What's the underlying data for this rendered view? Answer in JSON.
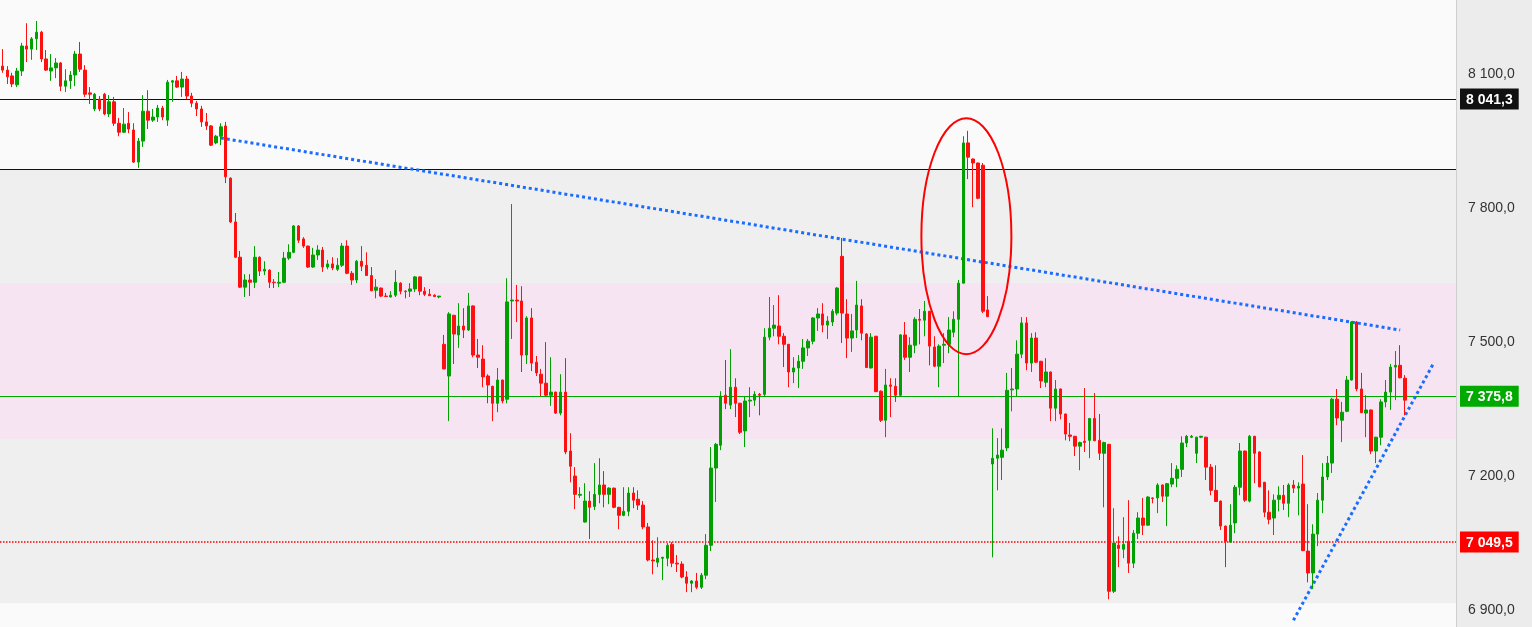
{
  "chart_data": {
    "type": "candlestick",
    "categories": [
      null,
      null,
      null,
      null,
      null,
      null,
      null,
      null,
      null,
      null,
      null,
      null,
      null,
      null,
      null,
      null,
      null,
      null,
      null,
      null,
      null,
      null,
      null,
      null,
      null,
      null,
      null,
      null,
      null,
      null,
      null,
      null,
      null,
      null,
      null,
      null,
      null,
      null,
      null,
      null,
      null,
      null,
      null,
      null,
      null,
      null,
      null,
      null,
      null,
      null,
      null,
      null,
      null,
      null,
      null,
      null,
      null,
      null,
      null,
      null,
      null,
      null,
      null,
      null,
      null,
      null,
      null,
      null,
      null,
      null,
      null,
      null,
      null,
      null,
      null,
      null,
      null,
      null,
      null,
      null,
      null,
      null,
      null,
      null,
      null,
      null,
      null,
      null,
      null,
      null,
      null,
      null,
      null,
      null,
      null,
      null,
      null,
      null,
      null,
      null,
      null,
      null,
      null,
      null,
      null,
      null,
      null,
      null,
      null,
      null,
      null,
      null,
      null,
      null,
      null,
      null,
      null,
      null,
      null,
      null,
      null,
      null,
      null,
      null,
      null,
      null,
      null,
      null,
      null,
      null,
      null,
      null,
      null,
      null,
      null,
      null,
      null,
      null,
      null,
      null,
      null,
      null,
      null,
      null,
      null,
      null,
      null,
      null,
      null,
      null,
      null,
      null,
      null,
      null,
      null,
      null,
      null,
      null,
      null,
      null,
      null,
      null,
      null,
      null,
      null,
      null,
      null,
      null,
      null,
      null,
      null,
      null,
      null,
      null,
      null,
      null,
      null,
      null,
      null,
      null,
      null,
      null,
      null,
      null,
      null,
      null,
      null,
      null,
      null,
      null,
      null,
      null,
      null,
      null,
      null,
      null,
      null,
      null,
      null,
      null,
      null,
      null,
      null,
      null,
      null,
      null,
      null,
      null,
      null,
      null,
      null,
      null,
      null,
      null,
      null,
      null,
      null,
      null,
      null,
      null,
      null,
      null,
      null,
      null,
      null,
      null,
      null,
      null,
      null,
      null,
      null,
      null,
      null,
      null,
      null,
      null,
      null,
      null,
      null,
      null,
      null,
      null,
      null,
      null,
      null,
      null,
      null,
      null,
      null,
      null,
      null,
      null,
      null,
      null,
      null,
      null,
      null,
      null,
      null,
      null,
      null,
      null,
      null,
      null,
      null,
      null,
      null,
      null,
      null,
      null,
      null,
      null,
      null,
      null,
      null,
      null,
      null,
      null,
      null,
      null,
      null,
      null,
      null,
      null,
      null,
      null,
      null,
      null,
      null,
      null,
      null,
      null,
      null,
      null,
      null,
      null,
      null,
      null,
      null,
      null
    ],
    "ohlc": [
      [
        8115,
        8153,
        8100,
        8106
      ],
      [
        8106,
        8115,
        8075,
        8091
      ],
      [
        8093,
        8100,
        8068,
        8075
      ],
      [
        8073,
        8111,
        8068,
        8104
      ],
      [
        8104,
        8167,
        8093,
        8160
      ],
      [
        8160,
        8211,
        8124,
        8153
      ],
      [
        8153,
        8180,
        8129,
        8176
      ],
      [
        8176,
        8216,
        8151,
        8191
      ],
      [
        8191,
        8194,
        8124,
        8131
      ],
      [
        8131,
        8151,
        8104,
        8106
      ],
      [
        8104,
        8142,
        8082,
        8111
      ],
      [
        8111,
        8133,
        8088,
        8122
      ],
      [
        8122,
        8124,
        8059,
        8070
      ],
      [
        8070,
        8108,
        8057,
        8082
      ],
      [
        8082,
        8104,
        8064,
        8095
      ],
      [
        8095,
        8149,
        8070,
        8142
      ],
      [
        8142,
        8169,
        8102,
        8108
      ],
      [
        8106,
        8117,
        8046,
        8052
      ],
      [
        8055,
        8068,
        8030,
        8052
      ],
      [
        8019,
        8055,
        8014,
        8052
      ],
      [
        8041,
        8048,
        8014,
        8019
      ],
      [
        8052,
        8055,
        8005,
        8008
      ],
      [
        8008,
        8050,
        8001,
        8035
      ],
      [
        8035,
        8046,
        7981,
        7987
      ],
      [
        7987,
        7999,
        7958,
        7967
      ],
      [
        7967,
        8021,
        7965,
        7985
      ],
      [
        7987,
        8012,
        7965,
        7974
      ],
      [
        7972,
        7987,
        7898,
        7900
      ],
      [
        7900,
        7954,
        7887,
        7947
      ],
      [
        7947,
        8050,
        7934,
        8014
      ],
      [
        8014,
        8061,
        7974,
        7994
      ],
      [
        7994,
        8019,
        7990,
        8001
      ],
      [
        8001,
        8028,
        7990,
        8021
      ],
      [
        8021,
        8026,
        7994,
        8001
      ],
      [
        7994,
        8084,
        7981,
        8079
      ],
      [
        8079,
        8084,
        8035,
        8082
      ],
      [
        8082,
        8093,
        8066,
        8068
      ],
      [
        8068,
        8102,
        8046,
        8086
      ],
      [
        8086,
        8093,
        8041,
        8048
      ],
      [
        8048,
        8055,
        8023,
        8032
      ],
      [
        8032,
        8037,
        8003,
        8019
      ],
      [
        8019,
        8026,
        7979,
        7990
      ],
      [
        7990,
        8010,
        7972,
        7981
      ],
      [
        7981,
        7983,
        7936,
        7938
      ],
      [
        7943,
        7961,
        7940,
        7958
      ],
      [
        7958,
        7987,
        7938,
        7979
      ],
      [
        7981,
        7990,
        7853,
        7867
      ],
      [
        7864,
        7866,
        7764,
        7766
      ],
      [
        7766,
        7786,
        7685,
        7687
      ],
      [
        7687,
        7701,
        7618,
        7620
      ],
      [
        7620,
        7649,
        7598,
        7636
      ],
      [
        7636,
        7649,
        7600,
        7631
      ],
      [
        7631,
        7712,
        7618,
        7687
      ],
      [
        7687,
        7689,
        7645,
        7656
      ],
      [
        7656,
        7678,
        7647,
        7660
      ],
      [
        7658,
        7660,
        7618,
        7631
      ],
      [
        7631,
        7638,
        7618,
        7630
      ],
      [
        7629,
        7654,
        7620,
        7631
      ],
      [
        7631,
        7699,
        7629,
        7685
      ],
      [
        7685,
        7716,
        7681,
        7698
      ],
      [
        7698,
        7759,
        7696,
        7757
      ],
      [
        7757,
        7759,
        7719,
        7725
      ],
      [
        7728,
        7732,
        7708,
        7712
      ],
      [
        7712,
        7713,
        7663,
        7665
      ],
      [
        7665,
        7708,
        7663,
        7692
      ],
      [
        7692,
        7714,
        7681,
        7703
      ],
      [
        7703,
        7710,
        7654,
        7665
      ],
      [
        7665,
        7681,
        7660,
        7672
      ],
      [
        7672,
        7687,
        7658,
        7663
      ],
      [
        7660,
        7685,
        7656,
        7669
      ],
      [
        7669,
        7719,
        7665,
        7712
      ],
      [
        7712,
        7725,
        7649,
        7651
      ],
      [
        7651,
        7656,
        7625,
        7636
      ],
      [
        7636,
        7681,
        7629,
        7678
      ],
      [
        7678,
        7712,
        7656,
        7667
      ],
      [
        7669,
        7698,
        7645,
        7646
      ],
      [
        7646,
        7665,
        7611,
        7612
      ],
      [
        7613,
        7638,
        7595,
        7620
      ],
      [
        7618,
        7619,
        7598,
        7600
      ],
      [
        7600,
        7607,
        7598,
        7599
      ],
      [
        7598,
        7611,
        7597,
        7602
      ],
      [
        7602,
        7658,
        7598,
        7631
      ],
      [
        7629,
        7631,
        7604,
        7611
      ],
      [
        7611,
        7613,
        7595,
        7610
      ],
      [
        7611,
        7629,
        7598,
        7616
      ],
      [
        7616,
        7645,
        7609,
        7643
      ],
      [
        7643,
        7644,
        7602,
        7611
      ],
      [
        7611,
        7620,
        7600,
        7604
      ],
      [
        7604,
        7616,
        7600,
        7601
      ],
      [
        7602,
        7604,
        7598,
        7599
      ],
      [
        7598,
        7600,
        7595,
        7600
      ],
      [
        7492,
        7513,
        7436,
        7437
      ],
      [
        7421,
        7564,
        7320,
        7560
      ],
      [
        7557,
        7558,
        7448,
        7515
      ],
      [
        7513,
        7584,
        7484,
        7533
      ],
      [
        7533,
        7573,
        7506,
        7524
      ],
      [
        7524,
        7607,
        7522,
        7578
      ],
      [
        7578,
        7579,
        7463,
        7468
      ],
      [
        7468,
        7504,
        7439,
        7463
      ],
      [
        7459,
        7490,
        7396,
        7419
      ],
      [
        7421,
        7425,
        7360,
        7401
      ],
      [
        7398,
        7399,
        7320,
        7360
      ],
      [
        7360,
        7439,
        7340,
        7412
      ],
      [
        7412,
        7413,
        7360,
        7365
      ],
      [
        7369,
        7640,
        7360,
        7587
      ],
      [
        7589,
        7806,
        7504,
        7591
      ],
      [
        7591,
        7625,
        7542,
        7589
      ],
      [
        7589,
        7622,
        7430,
        7468
      ],
      [
        7468,
        7555,
        7448,
        7551
      ],
      [
        7551,
        7573,
        7432,
        7450
      ],
      [
        7452,
        7466,
        7421,
        7428
      ],
      [
        7425,
        7437,
        7376,
        7405
      ],
      [
        7405,
        7497,
        7376,
        7378
      ],
      [
        7378,
        7463,
        7354,
        7385
      ],
      [
        7385,
        7386,
        7336,
        7338
      ],
      [
        7338,
        7425,
        7333,
        7385
      ],
      [
        7385,
        7461,
        7246,
        7251
      ],
      [
        7253,
        7293,
        7183,
        7219
      ],
      [
        7197,
        7217,
        7123,
        7156
      ],
      [
        7154,
        7172,
        7148,
        7156
      ],
      [
        7094,
        7181,
        7093,
        7141
      ],
      [
        7141,
        7163,
        7056,
        7127
      ],
      [
        7129,
        7226,
        7121,
        7156
      ],
      [
        7156,
        7237,
        7136,
        7177
      ],
      [
        7177,
        7208,
        7127,
        7156
      ],
      [
        7156,
        7172,
        7134,
        7170
      ],
      [
        7170,
        7171,
        7125,
        7127
      ],
      [
        7127,
        7128,
        7078,
        7109
      ],
      [
        7109,
        7172,
        7107,
        7118
      ],
      [
        7118,
        7172,
        7107,
        7159
      ],
      [
        7159,
        7172,
        7125,
        7143
      ],
      [
        7145,
        7165,
        7121,
        7132
      ],
      [
        7132,
        7141,
        7078,
        7083
      ],
      [
        7083,
        7092,
        7006,
        7009
      ],
      [
        7009,
        7053,
        6977,
        7007
      ],
      [
        7004,
        7060,
        6993,
        7013
      ],
      [
        7013,
        7016,
        6964,
        7015
      ],
      [
        7013,
        7047,
        6995,
        7042
      ],
      [
        7044,
        7049,
        6993,
        7002
      ],
      [
        7002,
        7020,
        6982,
        7000
      ],
      [
        7000,
        7006,
        6968,
        6971
      ],
      [
        6971,
        6984,
        6937,
        6957
      ],
      [
        6957,
        6964,
        6937,
        6962
      ],
      [
        6962,
        6980,
        6944,
        6948
      ],
      [
        6948,
        6980,
        6944,
        6975
      ],
      [
        6975,
        7067,
        6966,
        7042
      ],
      [
        7042,
        7262,
        7029,
        7215
      ],
      [
        7215,
        7271,
        7139,
        7268
      ],
      [
        7266,
        7387,
        7255,
        7376
      ],
      [
        7378,
        7457,
        7347,
        7360
      ],
      [
        7356,
        7481,
        7347,
        7396
      ],
      [
        7396,
        7416,
        7329,
        7360
      ],
      [
        7360,
        7361,
        7291,
        7295
      ],
      [
        7298,
        7374,
        7262,
        7365
      ],
      [
        7365,
        7396,
        7329,
        7367
      ],
      [
        7367,
        7387,
        7354,
        7380
      ],
      [
        7380,
        7383,
        7333,
        7378
      ],
      [
        7380,
        7528,
        7374,
        7508
      ],
      [
        7508,
        7598,
        7501,
        7528
      ],
      [
        7528,
        7580,
        7510,
        7535
      ],
      [
        7533,
        7602,
        7492,
        7510
      ],
      [
        7510,
        7517,
        7441,
        7492
      ],
      [
        7492,
        7493,
        7396,
        7430
      ],
      [
        7430,
        7463,
        7405,
        7439
      ],
      [
        7439,
        7468,
        7394,
        7454
      ],
      [
        7454,
        7504,
        7437,
        7484
      ],
      [
        7484,
        7504,
        7466,
        7499
      ],
      [
        7499,
        7553,
        7492,
        7551
      ],
      [
        7551,
        7573,
        7522,
        7560
      ],
      [
        7560,
        7584,
        7519,
        7535
      ],
      [
        7535,
        7555,
        7504,
        7544
      ],
      [
        7542,
        7571,
        7533,
        7566
      ],
      [
        7562,
        7620,
        7557,
        7618
      ],
      [
        7689,
        7730,
        7495,
        7562
      ],
      [
        7560,
        7593,
        7461,
        7506
      ],
      [
        7506,
        7560,
        7475,
        7522
      ],
      [
        7524,
        7634,
        7506,
        7580
      ],
      [
        7578,
        7593,
        7501,
        7517
      ],
      [
        7515,
        7517,
        7439,
        7440
      ],
      [
        7439,
        7517,
        7438,
        7508
      ],
      [
        7510,
        7511,
        7385,
        7386
      ],
      [
        7387,
        7389,
        7318,
        7322
      ],
      [
        7322,
        7437,
        7284,
        7401
      ],
      [
        7401,
        7416,
        7329,
        7398
      ],
      [
        7398,
        7416,
        7363,
        7378
      ],
      [
        7378,
        7515,
        7374,
        7513
      ],
      [
        7513,
        7542,
        7457,
        7463
      ],
      [
        7463,
        7508,
        7430,
        7490
      ],
      [
        7490,
        7553,
        7472,
        7548
      ],
      [
        7548,
        7571,
        7492,
        7546
      ],
      [
        7546,
        7589,
        7510,
        7566
      ],
      [
        7566,
        7567,
        7445,
        7488
      ],
      [
        7486,
        7510,
        7441,
        7443
      ],
      [
        7443,
        7492,
        7396,
        7488
      ],
      [
        7490,
        7517,
        7450,
        7492
      ],
      [
        7492,
        7553,
        7472,
        7524
      ],
      [
        7519,
        7566,
        7508,
        7548
      ],
      [
        7548,
        7636,
        7376,
        7629
      ],
      [
        7629,
        7958,
        7628,
        7943
      ],
      [
        7943,
        7970,
        7862,
        7911
      ],
      [
        7907,
        7908,
        7799,
        7898
      ],
      [
        7898,
        7899,
        7817,
        7819
      ],
      [
        7893,
        7898,
        7562,
        7566
      ],
      [
        7569,
        7600,
        7553,
        7554
      ],
      [
        7224,
        7304,
        7015,
        7237
      ],
      [
        7237,
        7282,
        7165,
        7244
      ],
      [
        7239,
        7304,
        7188,
        7255
      ],
      [
        7260,
        7428,
        7253,
        7389
      ],
      [
        7390,
        7439,
        7342,
        7392
      ],
      [
        7392,
        7501,
        7374,
        7470
      ],
      [
        7470,
        7553,
        7461,
        7540
      ],
      [
        7540,
        7553,
        7434,
        7450
      ],
      [
        7450,
        7517,
        7430,
        7506
      ],
      [
        7506,
        7519,
        7450,
        7452
      ],
      [
        7454,
        7455,
        7394,
        7410
      ],
      [
        7407,
        7461,
        7396,
        7430
      ],
      [
        7430,
        7431,
        7320,
        7349
      ],
      [
        7349,
        7412,
        7320,
        7392
      ],
      [
        7392,
        7393,
        7324,
        7336
      ],
      [
        7336,
        7337,
        7277,
        7291
      ],
      [
        7289,
        7316,
        7275,
        7286
      ],
      [
        7286,
        7287,
        7242,
        7264
      ],
      [
        7264,
        7274,
        7210,
        7272
      ],
      [
        7275,
        7394,
        7251,
        7272
      ],
      [
        7277,
        7327,
        7237,
        7326
      ],
      [
        7326,
        7383,
        7276,
        7276
      ],
      [
        7277,
        7336,
        7233,
        7248
      ],
      [
        7248,
        7274,
        7127,
        7272
      ],
      [
        7268,
        7269,
        6921,
        6939
      ],
      [
        6939,
        7125,
        6935,
        7047
      ],
      [
        7042,
        7062,
        6993,
        7035
      ],
      [
        7033,
        7105,
        7013,
        7044
      ],
      [
        7051,
        7143,
        6980,
        7002
      ],
      [
        7002,
        7076,
        6991,
        7069
      ],
      [
        7069,
        7116,
        7056,
        7103
      ],
      [
        7103,
        7148,
        7065,
        7087
      ],
      [
        7087,
        7152,
        7086,
        7150
      ],
      [
        7148,
        7149,
        7136,
        7147
      ],
      [
        7148,
        7181,
        7114,
        7177
      ],
      [
        7177,
        7178,
        7139,
        7152
      ],
      [
        7152,
        7181,
        7085,
        7180
      ],
      [
        7179,
        7226,
        7172,
        7192
      ],
      [
        7192,
        7221,
        7172,
        7212
      ],
      [
        7212,
        7286,
        7195,
        7271
      ],
      [
        7271,
        7289,
        7262,
        7286
      ],
      [
        7284,
        7289,
        7282,
        7286
      ],
      [
        7248,
        7285,
        7226,
        7284
      ],
      [
        7284,
        7287,
        7282,
        7286
      ],
      [
        7284,
        7285,
        7188,
        7217
      ],
      [
        7217,
        7224,
        7154,
        7165
      ],
      [
        7165,
        7221,
        7139,
        7140
      ],
      [
        7141,
        7142,
        7076,
        7085
      ],
      [
        7085,
        7086,
        6993,
        7051
      ],
      [
        7049,
        7134,
        7048,
        7087
      ],
      [
        7092,
        7177,
        7069,
        7172
      ],
      [
        7172,
        7271,
        7154,
        7253
      ],
      [
        7253,
        7254,
        7139,
        7143
      ],
      [
        7141,
        7289,
        7138,
        7286
      ],
      [
        7286,
        7287,
        7181,
        7248
      ],
      [
        7251,
        7252,
        7172,
        7173
      ],
      [
        7183,
        7184,
        7105,
        7116
      ],
      [
        7116,
        7165,
        7089,
        7100
      ],
      [
        7103,
        7156,
        7065,
        7143
      ],
      [
        7145,
        7174,
        7118,
        7154
      ],
      [
        7154,
        7177,
        7121,
        7136
      ],
      [
        7136,
        7181,
        7105,
        7177
      ],
      [
        7177,
        7188,
        7159,
        7170
      ],
      [
        7170,
        7183,
        7109,
        7174
      ],
      [
        7179,
        7244,
        7029,
        7030
      ],
      [
        7029,
        7134,
        6959,
        6980
      ],
      [
        6980,
        7089,
        6944,
        7067
      ],
      [
        7067,
        7159,
        7040,
        7143
      ],
      [
        7143,
        7226,
        7114,
        7195
      ],
      [
        7195,
        7242,
        7188,
        7226
      ],
      [
        7226,
        7372,
        7204,
        7369
      ],
      [
        7369,
        7392,
        7311,
        7327
      ],
      [
        7322,
        7363,
        7273,
        7340
      ],
      [
        7342,
        7421,
        7340,
        7412
      ],
      [
        7412,
        7544,
        7411,
        7542
      ],
      [
        7542,
        7544,
        7387,
        7392
      ],
      [
        7392,
        7428,
        7338,
        7339
      ],
      [
        7338,
        7378,
        7284,
        7345
      ],
      [
        7345,
        7346,
        7246,
        7253
      ],
      [
        7253,
        7285,
        7226,
        7284
      ],
      [
        7284,
        7369,
        7266,
        7363
      ],
      [
        7363,
        7412,
        7351,
        7385
      ],
      [
        7385,
        7448,
        7345,
        7441
      ],
      [
        7441,
        7477,
        7367,
        7445
      ],
      [
        7445,
        7490,
        7416,
        7417
      ],
      [
        7416,
        7423,
        7333,
        7367
      ],
      null,
      null,
      null,
      null,
      null,
      null,
      null,
      null,
      null,
      null
    ],
    "series": [
      {
        "type": "line",
        "color": "#1a6cff",
        "line_style": "dotted",
        "values": [
          null,
          null,
          null,
          null,
          null,
          null,
          null,
          null,
          null,
          null,
          null,
          null,
          null,
          null,
          null,
          null,
          null,
          null,
          null,
          null,
          null,
          null,
          null,
          null,
          null,
          null,
          null,
          null,
          null,
          null,
          null,
          null,
          null,
          null,
          null,
          null,
          null,
          null,
          null,
          null,
          null,
          null,
          null,
          null,
          null,
          7954,
          null,
          null,
          null,
          null,
          null,
          null,
          null,
          null,
          null,
          null,
          null,
          null,
          null,
          null,
          null,
          null,
          null,
          null,
          null,
          null,
          null,
          null,
          null,
          null,
          null,
          null,
          null,
          null,
          null,
          null,
          null,
          null,
          null,
          null,
          null,
          null,
          null,
          null,
          null,
          null,
          null,
          null,
          null,
          null,
          null,
          null,
          null,
          null,
          null,
          null,
          null,
          null,
          null,
          null,
          null,
          null,
          null,
          null,
          null,
          null,
          null,
          null,
          null,
          null,
          null,
          null,
          null,
          null,
          null,
          null,
          null,
          null,
          null,
          null,
          null,
          null,
          null,
          null,
          null,
          null,
          null,
          null,
          null,
          null,
          null,
          null,
          null,
          null,
          null,
          null,
          null,
          null,
          null,
          null,
          null,
          null,
          null,
          null,
          null,
          null,
          null,
          null,
          null,
          null,
          null,
          null,
          null,
          null,
          null,
          null,
          null,
          null,
          null,
          null,
          null,
          null,
          null,
          null,
          null,
          null,
          null,
          null,
          null,
          null,
          null,
          null,
          null,
          null,
          null,
          null,
          null,
          null,
          null,
          null,
          null,
          null,
          null,
          null,
          null,
          null,
          null,
          null,
          null,
          null,
          null,
          null,
          null,
          null,
          null,
          null,
          null,
          null,
          null,
          null,
          null,
          null,
          null,
          null,
          null,
          null,
          null,
          null,
          null,
          null,
          null,
          null,
          null,
          null,
          null,
          null,
          null,
          null,
          null,
          null,
          null,
          null,
          null,
          null,
          null,
          null,
          null,
          null,
          null,
          null,
          null,
          null,
          null,
          null,
          null,
          null,
          null,
          null,
          null,
          null,
          null,
          null,
          null,
          null,
          null,
          null,
          null,
          null,
          null,
          null,
          null,
          null,
          null,
          null,
          null,
          null,
          null,
          null,
          null,
          null,
          null,
          null,
          null,
          null,
          null,
          null,
          null,
          null,
          null,
          null,
          null,
          null,
          null,
          null,
          null,
          null,
          null,
          null,
          null,
          null,
          null,
          null,
          null,
          null,
          null,
          null,
          null,
          null,
          7524,
          null,
          null,
          null,
          null,
          null,
          null,
          null,
          null,
          null,
          null,
          null
        ]
      },
      {
        "type": "line",
        "color": "#1a6cff",
        "line_style": "dotted",
        "values": [
          null,
          null,
          null,
          null,
          null,
          null,
          null,
          null,
          null,
          null,
          null,
          null,
          null,
          null,
          null,
          null,
          null,
          null,
          null,
          null,
          null,
          null,
          null,
          null,
          null,
          null,
          null,
          null,
          null,
          null,
          null,
          null,
          null,
          null,
          null,
          null,
          null,
          null,
          null,
          null,
          null,
          null,
          null,
          null,
          null,
          null,
          null,
          null,
          null,
          null,
          null,
          null,
          null,
          null,
          null,
          null,
          null,
          null,
          null,
          null,
          null,
          null,
          null,
          null,
          null,
          null,
          null,
          null,
          null,
          null,
          null,
          null,
          null,
          null,
          null,
          null,
          null,
          null,
          null,
          null,
          null,
          null,
          null,
          null,
          null,
          null,
          null,
          null,
          null,
          null,
          null,
          null,
          null,
          null,
          null,
          null,
          null,
          null,
          null,
          null,
          null,
          null,
          null,
          null,
          null,
          null,
          null,
          null,
          null,
          null,
          null,
          null,
          null,
          null,
          null,
          null,
          null,
          null,
          null,
          null,
          null,
          null,
          null,
          null,
          null,
          null,
          null,
          null,
          null,
          null,
          null,
          null,
          null,
          null,
          null,
          null,
          null,
          null,
          null,
          null,
          null,
          null,
          null,
          null,
          null,
          null,
          null,
          null,
          null,
          null,
          null,
          null,
          null,
          null,
          null,
          null,
          null,
          null,
          null,
          null,
          null,
          null,
          null,
          null,
          null,
          null,
          null,
          null,
          null,
          null,
          null,
          null,
          null,
          null,
          null,
          null,
          null,
          null,
          null,
          null,
          null,
          null,
          null,
          null,
          null,
          null,
          null,
          null,
          null,
          null,
          null,
          null,
          null,
          null,
          null,
          null,
          null,
          null,
          null,
          null,
          null,
          null,
          null,
          null,
          null,
          null,
          null,
          null,
          null,
          null,
          null,
          null,
          null,
          null,
          null,
          null,
          null,
          null,
          null,
          null,
          null,
          null,
          null,
          null,
          null,
          null,
          null,
          null,
          null,
          null,
          null,
          null,
          null,
          null,
          null,
          null,
          null,
          null,
          null,
          null,
          null,
          null,
          null,
          null,
          null,
          null,
          null,
          null,
          null,
          null,
          null,
          null,
          null,
          null,
          null,
          null,
          null,
          null,
          null,
          null,
          null,
          null,
          null,
          null,
          null,
          null,
          6874,
          null,
          null,
          null,
          null,
          null,
          null,
          null,
          null,
          null,
          null,
          null,
          null,
          null,
          null,
          null,
          null,
          null,
          null,
          null,
          null,
          null,
          null,
          null,
          null,
          null,
          null,
          null,
          null,
          7452,
          null,
          null,
          null,
          null
        ]
      }
    ],
    "ylim": [
      6859,
      8263
    ],
    "yticks": [
      {
        "value": 6900,
        "label": "6 900,0"
      },
      {
        "value": 7200,
        "label": "7 200,0"
      },
      {
        "value": 7500,
        "label": "7 500,0"
      },
      {
        "value": 7800,
        "label": "7 800,0"
      },
      {
        "value": 8100,
        "label": "8 100,0"
      }
    ],
    "ref_lines": [
      {
        "axis": "y",
        "value": 8041.3,
        "label": "8 041,3",
        "color": "#111111"
      },
      {
        "axis": "y",
        "value": 7884,
        "label": null,
        "color": "#111111"
      },
      {
        "axis": "y",
        "value": 7375.8,
        "label": "7 375,8",
        "color": "#00aa00"
      },
      {
        "axis": "y",
        "value": 7049.5,
        "label": "7 049,5",
        "color": "#ff0000",
        "line_style": "dotted"
      }
    ],
    "bands": [
      {
        "axis": "y",
        "from": 6912,
        "to": 7884,
        "color": "#ededed"
      },
      {
        "axis": "y",
        "from": 7280,
        "to": 7629,
        "color": "#f6e2f2"
      }
    ],
    "grid": false,
    "tick_labels": "y"
  }
}
